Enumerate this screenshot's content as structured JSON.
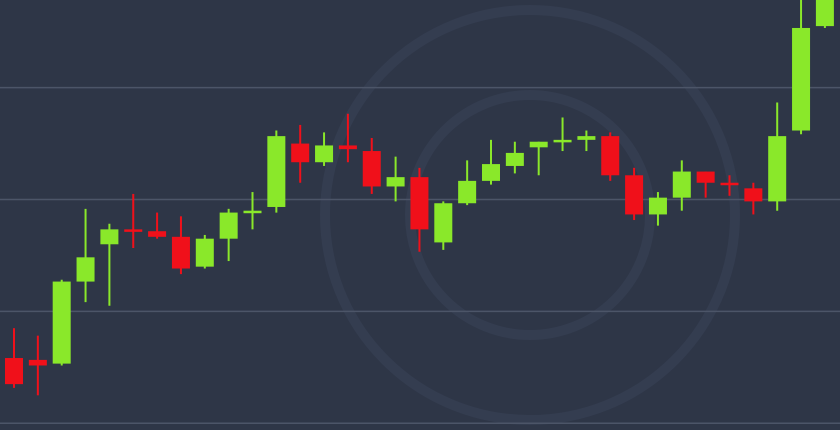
{
  "colors": {
    "background": "#2e3647",
    "gridline": "#4c5568",
    "watermark": "#343d50",
    "up": "#8ae82a",
    "down": "#f0101a"
  },
  "chart_data": {
    "type": "candlestick",
    "title": "",
    "xlabel": "",
    "ylabel": "",
    "grid": "horizontal",
    "ylim": [
      -1.8,
      113.5
    ],
    "gridlines_y": [
      0,
      30,
      60,
      90
    ],
    "candles": [
      {
        "open": 17.5,
        "high": 25.5,
        "low": 9.5,
        "close": 10.5
      },
      {
        "open": 17,
        "high": 23.5,
        "low": 7.5,
        "close": 15.5
      },
      {
        "open": 16,
        "high": 38.5,
        "low": 15.5,
        "close": 38
      },
      {
        "open": 38,
        "high": 57.5,
        "low": 32.5,
        "close": 44.5
      },
      {
        "open": 48,
        "high": 53.5,
        "low": 31.5,
        "close": 52
      },
      {
        "open": 52,
        "high": 61.5,
        "low": 47,
        "close": 51.5
      },
      {
        "open": 51.5,
        "high": 56.5,
        "low": 49.5,
        "close": 50
      },
      {
        "open": 50,
        "high": 55.5,
        "low": 40,
        "close": 41.5
      },
      {
        "open": 42,
        "high": 50.5,
        "low": 41.5,
        "close": 49.5
      },
      {
        "open": 49.5,
        "high": 57.5,
        "low": 43.5,
        "close": 56.5
      },
      {
        "open": 57,
        "high": 62,
        "low": 52,
        "close": 57
      },
      {
        "open": 58,
        "high": 78.5,
        "low": 56.5,
        "close": 77
      },
      {
        "open": 75,
        "high": 80,
        "low": 64.5,
        "close": 70
      },
      {
        "open": 70,
        "high": 78,
        "low": 69,
        "close": 74.5
      },
      {
        "open": 74.5,
        "high": 83,
        "low": 70,
        "close": 73.5
      },
      {
        "open": 73,
        "high": 76.5,
        "low": 61.5,
        "close": 63.5
      },
      {
        "open": 63.5,
        "high": 71.5,
        "low": 59.5,
        "close": 66
      },
      {
        "open": 66,
        "high": 68.5,
        "low": 46,
        "close": 52
      },
      {
        "open": 48.5,
        "high": 59.5,
        "low": 46.5,
        "close": 59
      },
      {
        "open": 59,
        "high": 70.5,
        "low": 58.5,
        "close": 65
      },
      {
        "open": 65,
        "high": 76,
        "low": 64,
        "close": 69.5
      },
      {
        "open": 69,
        "high": 75.5,
        "low": 67,
        "close": 72.5
      },
      {
        "open": 74,
        "high": 75.5,
        "low": 66.5,
        "close": 75.5
      },
      {
        "open": 76,
        "high": 82,
        "low": 73,
        "close": 76
      },
      {
        "open": 76,
        "high": 78.5,
        "low": 73,
        "close": 77
      },
      {
        "open": 77,
        "high": 78,
        "low": 65,
        "close": 66.5
      },
      {
        "open": 66.5,
        "high": 68.5,
        "low": 54.5,
        "close": 56
      },
      {
        "open": 56,
        "high": 62,
        "low": 53,
        "close": 60.5
      },
      {
        "open": 60.5,
        "high": 70.5,
        "low": 57,
        "close": 67.5
      },
      {
        "open": 67.5,
        "high": 67.5,
        "low": 60.5,
        "close": 64.5
      },
      {
        "open": 64.5,
        "high": 66.5,
        "low": 61,
        "close": 64
      },
      {
        "open": 63,
        "high": 64.5,
        "low": 56,
        "close": 59.5
      },
      {
        "open": 59.5,
        "high": 86,
        "low": 57,
        "close": 77
      },
      {
        "open": 78.5,
        "high": 116,
        "low": 77.5,
        "close": 106
      },
      {
        "open": 106.5,
        "high": 118,
        "low": 106,
        "close": 113.5
      }
    ]
  }
}
